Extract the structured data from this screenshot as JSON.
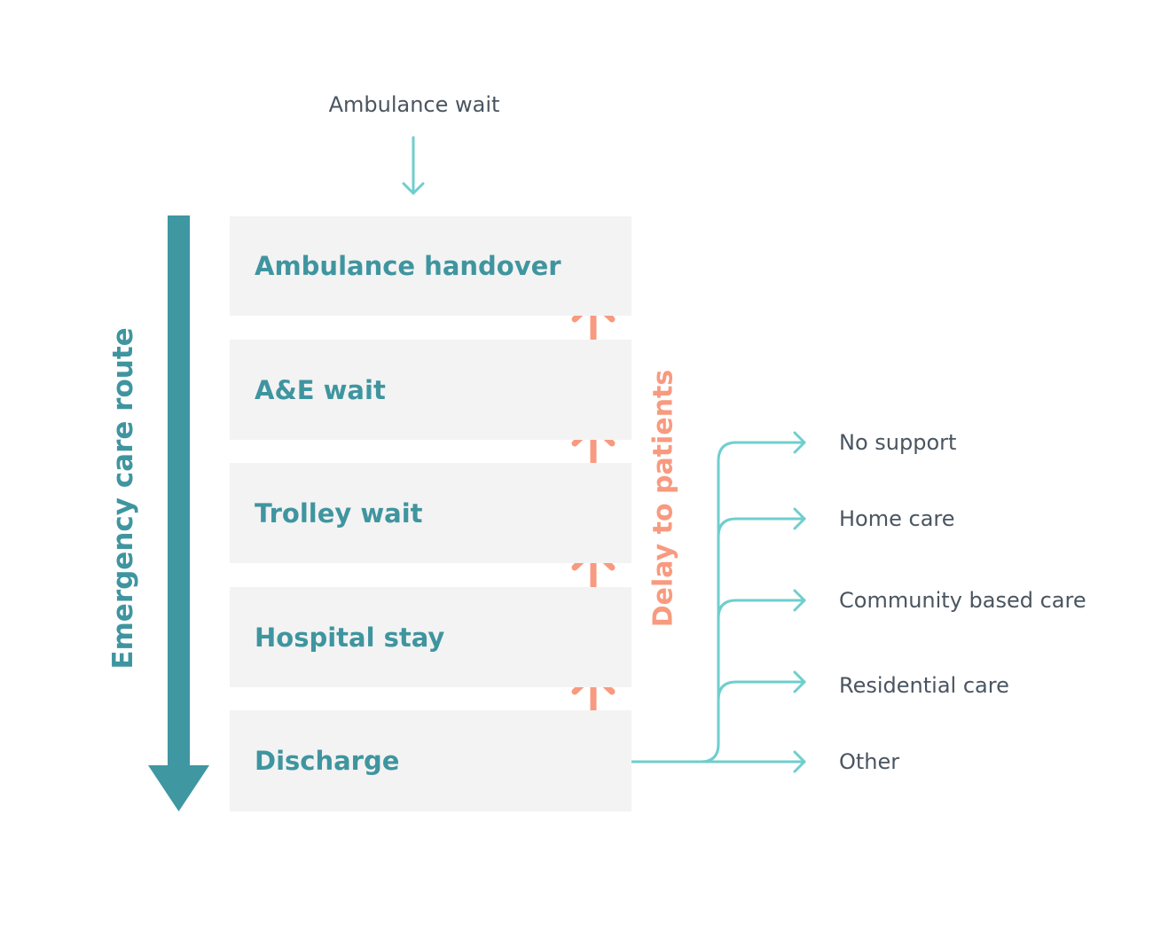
{
  "diagram": {
    "top_label": "Ambulance wait",
    "route_label": "Emergency care route",
    "delay_label": "Delay to patients",
    "stages": [
      {
        "label": "Ambulance handover"
      },
      {
        "label": "A&E wait"
      },
      {
        "label": "Trolley wait"
      },
      {
        "label": "Hospital stay"
      },
      {
        "label": "Discharge"
      }
    ],
    "destinations": [
      {
        "label": "No support"
      },
      {
        "label": "Home care"
      },
      {
        "label": "Community based care"
      },
      {
        "label": "Residential care"
      },
      {
        "label": "Other"
      }
    ]
  },
  "colors": {
    "teal_dark": "#3f959f",
    "teal_route_arrow": "#3f97a2",
    "teal_light": "#6fcecd",
    "salmon": "#f89a7f",
    "box_fill": "#f3f3f3",
    "text_grey": "#4a5560"
  }
}
